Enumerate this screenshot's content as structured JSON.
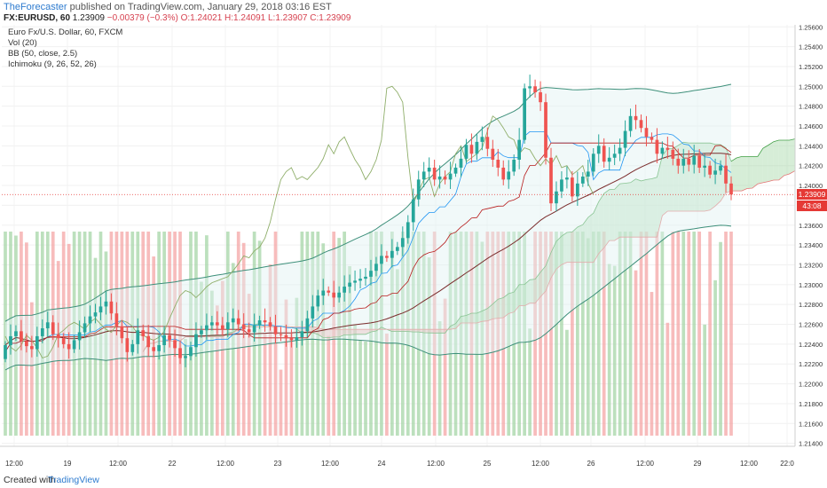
{
  "header": {
    "author": "TheForecaster",
    "published_text": "published on TradingView.com, January 29, 2018 03:16 EST",
    "symbol": "FX:EURUSD, 60",
    "last": "1.23909",
    "change": "−0.00379 (−0.3%)",
    "ohlc": "O:1.24021 H:1.24091 L:1.23907 C:1.23909"
  },
  "legend": {
    "title": "Euro Fx/U.S. Dollar, 60, FXCM",
    "vol": "Vol (20)",
    "bb": "BB (50, close, 2.5)",
    "ichimoku": "Ichimoku (9, 26, 52, 26)"
  },
  "footer": {
    "created": "Created with",
    "brand": "TradingView"
  },
  "price_tags": {
    "last": "1.23909",
    "countdown": "43:08"
  },
  "colors": {
    "up": "#26a69a",
    "down": "#ef5350",
    "bb": "#3d8f7a",
    "kumo_up": "#a5d6a7",
    "kumo_down": "#ef9a9a",
    "chikou": "#8fae6a",
    "tenkan": "#2196f3",
    "kijun": "#b71c1c",
    "lastprice": "#e53935"
  },
  "chart_data": {
    "type": "candlestick",
    "yaxis": {
      "ticks": [
        "1.25600",
        "1.25400",
        "1.25200",
        "1.25000",
        "1.24800",
        "1.24600",
        "1.24400",
        "1.24200",
        "1.24000",
        "1.23800",
        "1.23600",
        "1.23400",
        "1.23200",
        "1.23000",
        "1.22800",
        "1.22600",
        "1.22400",
        "1.22200",
        "1.22000",
        "1.21800",
        "1.21600",
        "1.21400"
      ],
      "range": [
        1.2137,
        1.2562
      ]
    },
    "xaxis": {
      "ticks": [
        "12:00",
        "19",
        "12:00",
        "22",
        "12:00",
        "23",
        "12:00",
        "24",
        "12:00",
        "25",
        "12:00",
        "26",
        "12:00",
        "29",
        "12:00",
        "22:0"
      ]
    },
    "close": [
      1.2239,
      1.2248,
      1.2253,
      1.2243,
      1.2238,
      1.2235,
      1.2248,
      1.2256,
      1.2262,
      1.225,
      1.2246,
      1.224,
      1.2235,
      1.2244,
      1.2252,
      1.2261,
      1.2268,
      1.2272,
      1.2278,
      1.2283,
      1.2271,
      1.2258,
      1.2246,
      1.2232,
      1.224,
      1.2254,
      1.2248,
      1.2237,
      1.2233,
      1.2239,
      1.2249,
      1.2244,
      1.2236,
      1.2226,
      1.2228,
      1.2237,
      1.225,
      1.2254,
      1.2259,
      1.2262,
      1.2259,
      1.2255,
      1.2262,
      1.2266,
      1.226,
      1.2255,
      1.2252,
      1.2259,
      1.2264,
      1.2262,
      1.2258,
      1.225,
      1.2249,
      1.2246,
      1.2244,
      1.2247,
      1.2253,
      1.2266,
      1.2278,
      1.2289,
      1.2294,
      1.2292,
      1.2287,
      1.2292,
      1.2298,
      1.2302,
      1.2304,
      1.2306,
      1.2308,
      1.2314,
      1.2321,
      1.2329,
      1.2327,
      1.2334,
      1.2338,
      1.2347,
      1.2363,
      1.2386,
      1.2406,
      1.2414,
      1.2418,
      1.2406,
      1.2409,
      1.2406,
      1.2412,
      1.2418,
      1.2427,
      1.2441,
      1.2432,
      1.2444,
      1.2449,
      1.2437,
      1.2426,
      1.2418,
      1.2406,
      1.2414,
      1.2426,
      1.2446,
      1.2498,
      1.25,
      1.2494,
      1.2484,
      1.2428,
      1.2382,
      1.2394,
      1.2406,
      1.2408,
      1.2389,
      1.2402,
      1.2409,
      1.2414,
      1.2432,
      1.244,
      1.2424,
      1.2428,
      1.2432,
      1.2438,
      1.2455,
      1.247,
      1.2466,
      1.2458,
      1.2449,
      1.2446,
      1.2432,
      1.2438,
      1.2436,
      1.2427,
      1.242,
      1.2427,
      1.2421,
      1.243,
      1.2418,
      1.242,
      1.2411,
      1.2415,
      1.242,
      1.2402,
      1.2391
    ],
    "open_first": 1.2225,
    "last_price": 1.23909,
    "bb_upper_first": 1.2267,
    "bb_upper_last": 1.2507,
    "bb_lower_first": 1.2209,
    "bb_lower_last": 1.2353,
    "volume_label": "Vol (20)"
  }
}
